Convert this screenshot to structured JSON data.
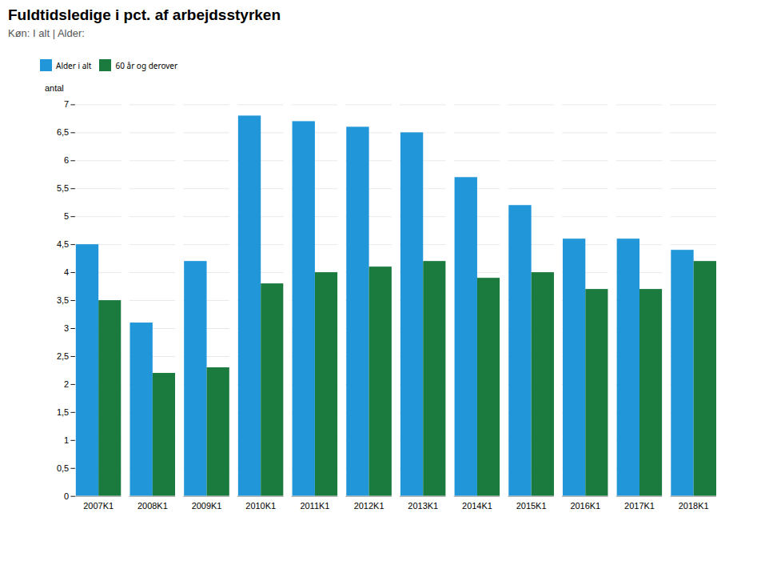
{
  "chart_data": {
    "type": "bar",
    "title": "Fuldtidsledige i pct. af arbejdsstyrken",
    "subtitle": "Køn: I alt | Alder:",
    "ylabel": "antal",
    "categories": [
      "2007K1",
      "2008K1",
      "2009K1",
      "2010K1",
      "2011K1",
      "2012K1",
      "2013K1",
      "2014K1",
      "2015K1",
      "2016K1",
      "2017K1",
      "2018K1"
    ],
    "series": [
      {
        "name": "Alder i alt",
        "color": "#2196D9",
        "values": [
          4.5,
          3.1,
          4.2,
          6.8,
          6.7,
          6.6,
          6.5,
          5.7,
          5.2,
          4.6,
          4.6,
          4.4
        ]
      },
      {
        "name": "60 år og derover",
        "color": "#1B7A3E",
        "values": [
          3.5,
          2.2,
          2.3,
          3.8,
          4.0,
          4.1,
          4.2,
          3.9,
          4.0,
          3.7,
          3.7,
          4.2
        ]
      }
    ],
    "ylim": [
      0,
      7
    ],
    "yticks": [
      0,
      {
        "value": 0.5,
        "label": "0,5"
      },
      1,
      {
        "value": 1.5,
        "label": "1,5"
      },
      2,
      {
        "value": 2.5,
        "label": "2,5"
      },
      3,
      {
        "value": 3.5,
        "label": "3,5"
      },
      4,
      {
        "value": 4.5,
        "label": "4,5"
      },
      5,
      {
        "value": 5.5,
        "label": "5,5"
      },
      6,
      {
        "value": 6.5,
        "label": "6,5"
      },
      7
    ],
    "grid": true,
    "legend": "top"
  }
}
